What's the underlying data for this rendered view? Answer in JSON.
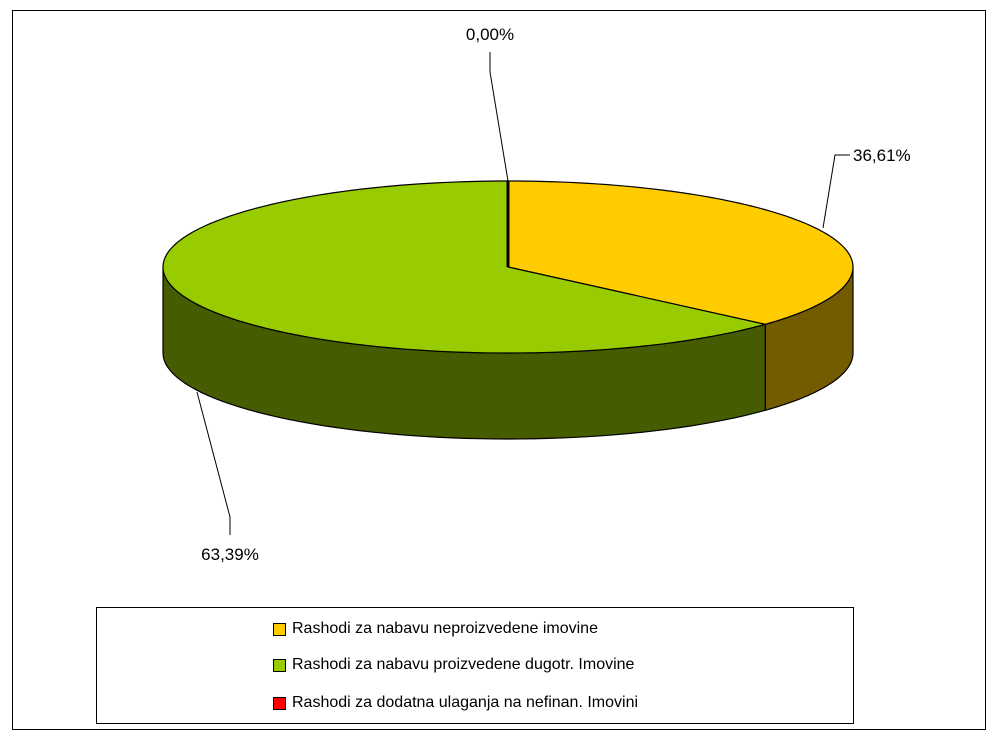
{
  "chart_data": {
    "type": "pie",
    "style": "3d",
    "title": "",
    "categories": [
      "Rashodi za nabavu neproizvedene imovine",
      "Rashodi za nabavu proizvedene dugotr. Imovine",
      "Rashodi za dodatna ulaganja na nefinan. Imovini"
    ],
    "values": [
      36.61,
      63.39,
      0.0
    ],
    "data_labels": [
      "36,61%",
      "63,39%",
      "0,00%"
    ],
    "colors": [
      "#FFCC00",
      "#99CC00",
      "#FF0000"
    ],
    "legend_position": "bottom"
  }
}
